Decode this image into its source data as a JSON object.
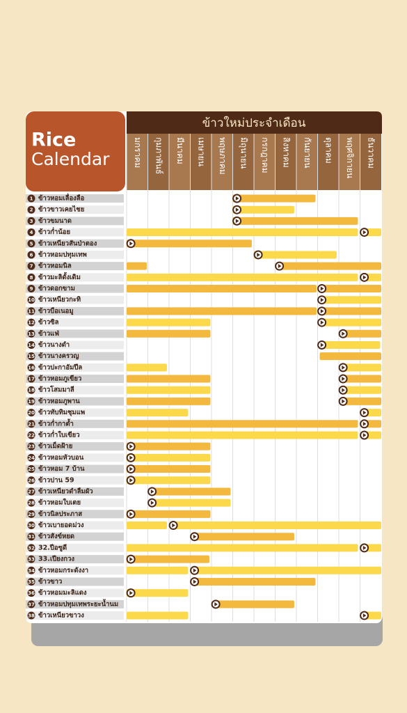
{
  "logo": {
    "line1": "Rice",
    "line2": "Calendar"
  },
  "header": "ข้าวใหม่ประจำเดือน",
  "months": [
    "มกราคม",
    "กุมภาพันธ์",
    "มีนาคม",
    "เมษายน",
    "พฤษภาคม",
    "มิถุนายน",
    "กรกฎาคม",
    "สิงหาคม",
    "กันยายน",
    "ตุลาคม",
    "พฤศจิกายน",
    "ธันวาคม"
  ],
  "rows": [
    {
      "number": "1",
      "name": "ข้าวหอมเลื่องลือ",
      "marker": 5.2,
      "bars": [
        {
          "from": 5,
          "to": 8.9,
          "color": "#f3b83e"
        }
      ]
    },
    {
      "number": "2",
      "name": "ข้าวขาวเคยไชย",
      "marker": 5.2,
      "bars": [
        {
          "from": 5,
          "to": 7.9,
          "color": "#fcd94a"
        }
      ]
    },
    {
      "number": "3",
      "name": "ข้าวขมนาด",
      "marker": 5.2,
      "bars": [
        {
          "from": 5,
          "to": 10.9,
          "color": "#f3b83e"
        }
      ]
    },
    {
      "number": "4",
      "name": "ข้าวก่ำน้อย",
      "marker": 11.2,
      "bars": [
        {
          "from": 0,
          "to": 10.9,
          "color": "#fcd94a"
        },
        {
          "from": 11.05,
          "to": 12,
          "color": "#fcd94a"
        }
      ]
    },
    {
      "number": "5",
      "name": "ข้าวเหนียวสันป่าตอง",
      "marker": 0.2,
      "bars": [
        {
          "from": 0,
          "to": 5.9,
          "color": "#f3b83e"
        }
      ]
    },
    {
      "number": "6",
      "name": "ข้าวหอมปทุมเทพ",
      "marker": 6.2,
      "bars": [
        {
          "from": 6,
          "to": 9.9,
          "color": "#fcd94a"
        }
      ]
    },
    {
      "number": "7",
      "name": "ข้าวหอมนิล",
      "marker": 7.2,
      "bars": [
        {
          "from": 0,
          "to": 0.95,
          "color": "#f3b83e"
        },
        {
          "from": 7.05,
          "to": 12,
          "color": "#f3b83e"
        }
      ]
    },
    {
      "number": "8",
      "name": "ข้าวมะลิดั้งเดิม",
      "marker": 11.2,
      "bars": [
        {
          "from": 0,
          "to": 10.9,
          "color": "#fcd94a"
        },
        {
          "from": 11.05,
          "to": 12,
          "color": "#fcd94a"
        }
      ]
    },
    {
      "number": "9",
      "name": "ข้าวดอกขาม",
      "marker": 9.2,
      "bars": [
        {
          "from": 0,
          "to": 8.95,
          "color": "#f3b83e"
        },
        {
          "from": 9.05,
          "to": 12,
          "color": "#f3b83e"
        }
      ]
    },
    {
      "number": "10",
      "name": "ข้าวเหนียวกะทิ",
      "marker": 9.2,
      "bars": [
        {
          "from": 9.05,
          "to": 12,
          "color": "#fcd94a"
        }
      ]
    },
    {
      "number": "11",
      "name": "ข้าวบือเนอมู",
      "marker": 9.2,
      "bars": [
        {
          "from": 0,
          "to": 8.95,
          "color": "#f3b83e"
        },
        {
          "from": 9.05,
          "to": 12,
          "color": "#f3b83e"
        }
      ]
    },
    {
      "number": "12",
      "name": "ข้าวซิล",
      "marker": 9.2,
      "bars": [
        {
          "from": 0,
          "to": 3.95,
          "color": "#fcd94a"
        },
        {
          "from": 9.05,
          "to": 12,
          "color": "#fcd94a"
        }
      ]
    },
    {
      "number": "13",
      "name": "ข้าวแฟ่",
      "marker": 10.2,
      "bars": [
        {
          "from": 0,
          "to": 3.95,
          "color": "#f3b83e"
        },
        {
          "from": 10.05,
          "to": 12,
          "color": "#f3b83e"
        }
      ]
    },
    {
      "number": "14",
      "name": "ข้าวนางดำ",
      "marker": 9.2,
      "bars": [
        {
          "from": 9.05,
          "to": 11.95,
          "color": "#fcd94a"
        }
      ]
    },
    {
      "number": "15",
      "name": "ข้าวนางครวญ",
      "bars": [
        {
          "from": 9.1,
          "to": 12,
          "color": "#f3b83e"
        }
      ]
    },
    {
      "number": "16",
      "name": "ข้าวปะกาอัมปึล",
      "marker": 10.2,
      "bars": [
        {
          "from": 0,
          "to": 1.9,
          "color": "#fcd94a"
        },
        {
          "from": 10.05,
          "to": 12,
          "color": "#fcd94a"
        }
      ]
    },
    {
      "number": "17",
      "name": "ข้าวหอมภูเขียว",
      "marker": 10.2,
      "bars": [
        {
          "from": 0,
          "to": 3.95,
          "color": "#f3b83e"
        },
        {
          "from": 10.05,
          "to": 12,
          "color": "#f3b83e"
        }
      ]
    },
    {
      "number": "18",
      "name": "ข้าวโสมมาลี",
      "marker": 10.2,
      "bars": [
        {
          "from": 0,
          "to": 3.95,
          "color": "#fcd94a"
        },
        {
          "from": 10.05,
          "to": 12,
          "color": "#fcd94a"
        }
      ]
    },
    {
      "number": "19",
      "name": "ข้าวหอมภูพาน",
      "marker": 10.2,
      "bars": [
        {
          "from": 0,
          "to": 3.95,
          "color": "#f3b83e"
        },
        {
          "from": 10.05,
          "to": 12,
          "color": "#f3b83e"
        }
      ]
    },
    {
      "number": "20",
      "name": "ข้าวทับทิมชุมแพ",
      "marker": 11.2,
      "bars": [
        {
          "from": 0,
          "to": 2.9,
          "color": "#fcd94a"
        },
        {
          "from": 11.05,
          "to": 12,
          "color": "#fcd94a"
        }
      ]
    },
    {
      "number": "21",
      "name": "ข้าวก่ำกาต้ำ",
      "marker": 11.2,
      "bars": [
        {
          "from": 0,
          "to": 10.9,
          "color": "#f3b83e"
        },
        {
          "from": 11.05,
          "to": 12,
          "color": "#f3b83e"
        }
      ]
    },
    {
      "number": "22",
      "name": "ข้าวก่ำใบเขียว",
      "marker": 11.2,
      "bars": [
        {
          "from": 0,
          "to": 10.9,
          "color": "#fcd94a"
        },
        {
          "from": 11.05,
          "to": 12,
          "color": "#fcd94a"
        }
      ]
    },
    {
      "number": "23",
      "name": "ข้าวเม็ดฝ้าย",
      "marker": 0.2,
      "bars": [
        {
          "from": 0,
          "to": 3.95,
          "color": "#f3b83e"
        }
      ]
    },
    {
      "number": "24",
      "name": "ข้าวหอมหัวบอน",
      "marker": 0.2,
      "bars": [
        {
          "from": 0,
          "to": 3.95,
          "color": "#fcd94a"
        }
      ]
    },
    {
      "number": "25",
      "name": "ข้าวหอม 7 บ้าน",
      "marker": 0.2,
      "bars": [
        {
          "from": 0,
          "to": 3.95,
          "color": "#f3b83e"
        }
      ]
    },
    {
      "number": "26",
      "name": "ข้าวปาน 59",
      "marker": 0.2,
      "bars": [
        {
          "from": 0,
          "to": 3.95,
          "color": "#fcd94a"
        }
      ]
    },
    {
      "number": "27",
      "name": "ข้าวเหนียวดำลืมผัว",
      "marker": 1.2,
      "bars": [
        {
          "from": 1.05,
          "to": 4.9,
          "color": "#f3b83e"
        }
      ]
    },
    {
      "number": "28",
      "name": "ข้าวหอมใบเตย",
      "marker": 1.2,
      "bars": [
        {
          "from": 1.05,
          "to": 4.9,
          "color": "#fcd94a"
        }
      ]
    },
    {
      "number": "29",
      "name": "ข้าวนิลประภาส",
      "marker": 0.2,
      "bars": [
        {
          "from": 0,
          "to": 3.95,
          "color": "#f3b83e"
        }
      ]
    },
    {
      "number": "30",
      "name": "ข้าวเบายอดม่วง",
      "marker": 2.2,
      "bars": [
        {
          "from": 0,
          "to": 1.9,
          "color": "#fcd94a"
        },
        {
          "from": 2.05,
          "to": 12,
          "color": "#fcd94a"
        }
      ]
    },
    {
      "number": "31",
      "name": "ข้าวสังข์หยด",
      "marker": 3.2,
      "bars": [
        {
          "from": 3.05,
          "to": 7.9,
          "color": "#f3b83e"
        }
      ]
    },
    {
      "number": "32",
      "name": "32.ปีอซูดี",
      "marker": 11.2,
      "bars": [
        {
          "from": 0,
          "to": 10.9,
          "color": "#fcd94a"
        },
        {
          "from": 11.05,
          "to": 12,
          "color": "#fcd94a"
        }
      ]
    },
    {
      "number": "33",
      "name": "33.เปียงกวง",
      "marker": 0.2,
      "bars": [
        {
          "from": 0,
          "to": 3.9,
          "color": "#f3b83e"
        }
      ]
    },
    {
      "number": "34",
      "name": "ข้าวหอมกระดังงา",
      "marker": 3.2,
      "bars": [
        {
          "from": 0,
          "to": 2.9,
          "color": "#fcd94a"
        },
        {
          "from": 3.05,
          "to": 12,
          "color": "#fcd94a"
        }
      ]
    },
    {
      "number": "35",
      "name": "ข้าวขาว",
      "marker": 3.2,
      "bars": [
        {
          "from": 3.05,
          "to": 8.9,
          "color": "#f3b83e"
        }
      ]
    },
    {
      "number": "36",
      "name": "ข้าวหอมมะลิแดง",
      "marker": 0.2,
      "bars": [
        {
          "from": 0,
          "to": 2.9,
          "color": "#fcd94a"
        }
      ]
    },
    {
      "number": "37",
      "name": "ข้าวหอมปทุมเทพระยะน้ำนม",
      "marker": 4.2,
      "bars": [
        {
          "from": 4.05,
          "to": 7.9,
          "color": "#f3b83e"
        }
      ]
    },
    {
      "number": "38",
      "name": "ข้าวเหนียวขาวง",
      "marker": 11.2,
      "bars": [
        {
          "from": 0,
          "to": 2.9,
          "color": "#fcd94a"
        },
        {
          "from": 11.05,
          "to": 12,
          "color": "#fcd94a"
        }
      ]
    }
  ]
}
